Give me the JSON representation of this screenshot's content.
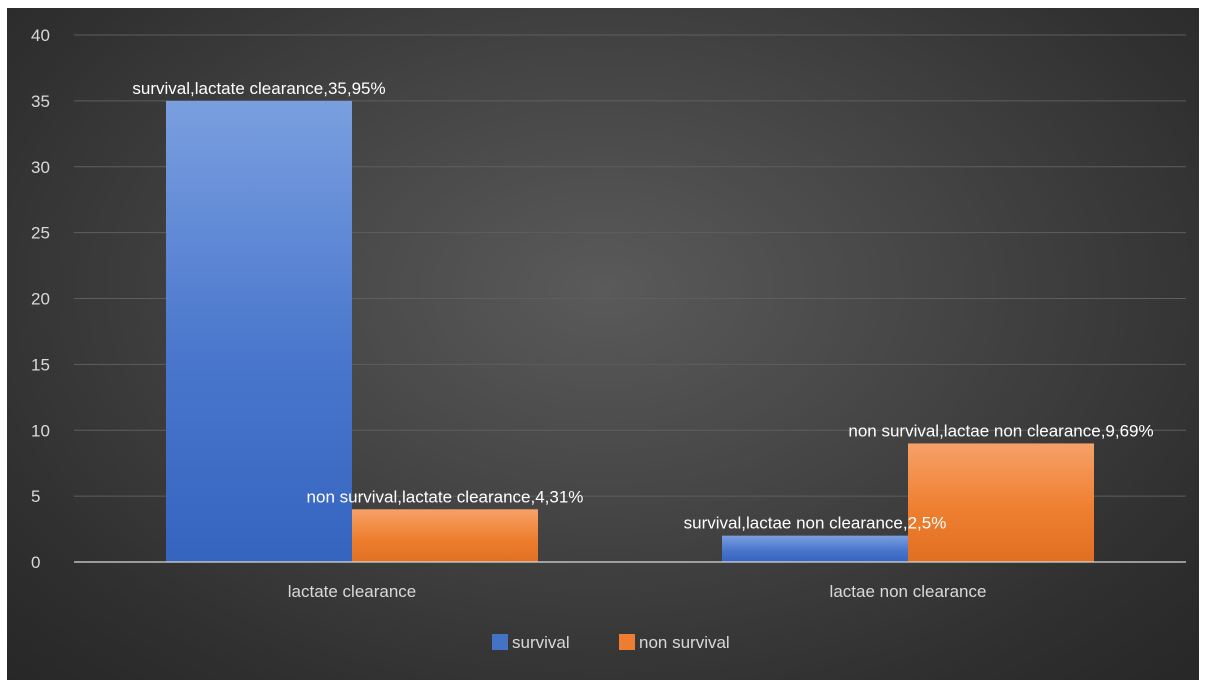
{
  "chart_data": {
    "type": "bar",
    "categories": [
      "lactate clearance",
      "lactae non clearance"
    ],
    "series": [
      {
        "name": "survival",
        "color": "#4472c4",
        "values": [
          35,
          2
        ],
        "labels": [
          "survival,lactate clearance,35,95%",
          "survival,lactae non clearance,2,5%"
        ]
      },
      {
        "name": "non survival",
        "color": "#ed7d31",
        "values": [
          4,
          9
        ],
        "labels": [
          "non survival,lactate clearance,4,31%",
          "non survival,lactae non clearance,9,69%"
        ]
      }
    ],
    "ylim": [
      0,
      40
    ],
    "yticks": [
      "0",
      "5",
      "10",
      "15",
      "20",
      "25",
      "30",
      "35",
      "40"
    ],
    "grid": true,
    "legend_position": "bottom"
  }
}
